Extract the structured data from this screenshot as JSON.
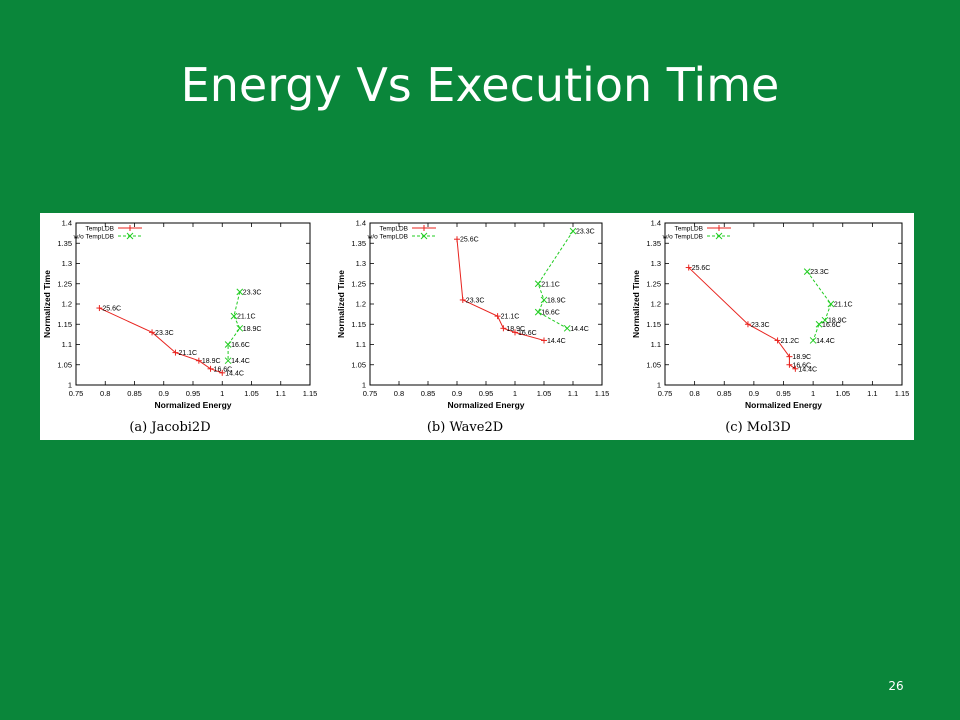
{
  "slide": {
    "title": "Energy Vs Execution Time",
    "page_number": "26"
  },
  "colors": {
    "background": "#0a863a",
    "templdb": "#e8231e",
    "wo_templdb": "#22cc22"
  },
  "chart_data": [
    {
      "type": "line",
      "caption": "(a)  Jacobi2D",
      "xlabel": "Normalized Energy",
      "ylabel": "Normalized Time",
      "xlim": [
        0.75,
        1.15
      ],
      "ylim": [
        1.0,
        1.4
      ],
      "xticks": [
        "0.75",
        "0.8",
        "0.85",
        "0.9",
        "0.95",
        "1",
        "1.05",
        "1.1",
        "1.15"
      ],
      "yticks": [
        "1",
        "1.05",
        "1.1",
        "1.15",
        "1.2",
        "1.25",
        "1.3",
        "1.35",
        "1.4"
      ],
      "legend_position": "top-left",
      "series": [
        {
          "name": "TempLDB",
          "marker": "+",
          "dash": "solid",
          "points": [
            {
              "x": 0.79,
              "y": 1.19,
              "label": "25.6C"
            },
            {
              "x": 0.88,
              "y": 1.13,
              "label": "23.3C"
            },
            {
              "x": 0.92,
              "y": 1.08,
              "label": "21.1C"
            },
            {
              "x": 0.96,
              "y": 1.06,
              "label": "18.9C"
            },
            {
              "x": 0.98,
              "y": 1.04,
              "label": "16.6C"
            },
            {
              "x": 1.0,
              "y": 1.03,
              "label": "14.4C"
            }
          ]
        },
        {
          "name": "w/o TempLDB",
          "marker": "x",
          "dash": "dashed",
          "points": [
            {
              "x": 1.03,
              "y": 1.23,
              "label": "23.3C"
            },
            {
              "x": 1.02,
              "y": 1.17,
              "label": "21.1C"
            },
            {
              "x": 1.03,
              "y": 1.14,
              "label": "18.9C"
            },
            {
              "x": 1.01,
              "y": 1.1,
              "label": "16.6C"
            },
            {
              "x": 1.01,
              "y": 1.06,
              "label": "14.4C"
            }
          ]
        }
      ]
    },
    {
      "type": "line",
      "caption": "(b)  Wave2D",
      "xlabel": "Normalized Energy",
      "ylabel": "Normalized Time",
      "xlim": [
        0.75,
        1.15
      ],
      "ylim": [
        1.0,
        1.4
      ],
      "xticks": [
        "0.75",
        "0.8",
        "0.85",
        "0.9",
        "0.95",
        "1",
        "1.05",
        "1.1",
        "1.15"
      ],
      "yticks": [
        "1",
        "1.05",
        "1.1",
        "1.15",
        "1.2",
        "1.25",
        "1.3",
        "1.35",
        "1.4"
      ],
      "legend_position": "top-left",
      "series": [
        {
          "name": "TempLDB",
          "marker": "+",
          "dash": "solid",
          "points": [
            {
              "x": 0.9,
              "y": 1.36,
              "label": "25.6C"
            },
            {
              "x": 0.91,
              "y": 1.21,
              "label": "23.3C"
            },
            {
              "x": 0.97,
              "y": 1.17,
              "label": "21.1C"
            },
            {
              "x": 0.98,
              "y": 1.14,
              "label": "18.9C"
            },
            {
              "x": 1.0,
              "y": 1.13,
              "label": "16.6C"
            },
            {
              "x": 1.05,
              "y": 1.11,
              "label": "14.4C"
            }
          ]
        },
        {
          "name": "w/o TempLDB",
          "marker": "x",
          "dash": "dashed",
          "points": [
            {
              "x": 1.1,
              "y": 1.38,
              "label": "23.3C"
            },
            {
              "x": 1.04,
              "y": 1.25,
              "label": "21.1C"
            },
            {
              "x": 1.05,
              "y": 1.21,
              "label": "18.9C"
            },
            {
              "x": 1.04,
              "y": 1.18,
              "label": "16.6C"
            },
            {
              "x": 1.09,
              "y": 1.14,
              "label": "14.4C"
            }
          ]
        }
      ]
    },
    {
      "type": "line",
      "caption": "(c)  Mol3D",
      "xlabel": "Normalized Energy",
      "ylabel": "Normalized Time",
      "xlim": [
        0.75,
        1.15
      ],
      "ylim": [
        1.0,
        1.4
      ],
      "xticks": [
        "0.75",
        "0.8",
        "0.85",
        "0.9",
        "0.95",
        "1",
        "1.05",
        "1.1",
        "1.15"
      ],
      "yticks": [
        "1",
        "1.05",
        "1.1",
        "1.15",
        "1.2",
        "1.25",
        "1.3",
        "1.35",
        "1.4"
      ],
      "legend_position": "top-left",
      "series": [
        {
          "name": "TempLDB",
          "marker": "+",
          "dash": "solid",
          "points": [
            {
              "x": 0.79,
              "y": 1.29,
              "label": "25.6C"
            },
            {
              "x": 0.89,
              "y": 1.15,
              "label": "23.3C"
            },
            {
              "x": 0.94,
              "y": 1.11,
              "label": "21.2C"
            },
            {
              "x": 0.96,
              "y": 1.07,
              "label": "18.9C"
            },
            {
              "x": 0.96,
              "y": 1.05,
              "label": "16.6C"
            },
            {
              "x": 0.97,
              "y": 1.04,
              "label": "14.4C"
            }
          ]
        },
        {
          "name": "w/o TempLDB",
          "marker": "x",
          "dash": "dashed",
          "points": [
            {
              "x": 0.99,
              "y": 1.28,
              "label": "23.3C"
            },
            {
              "x": 1.03,
              "y": 1.2,
              "label": "21.1C"
            },
            {
              "x": 1.02,
              "y": 1.16,
              "label": "18.9C"
            },
            {
              "x": 1.01,
              "y": 1.15,
              "label": "16.6C"
            },
            {
              "x": 1.0,
              "y": 1.11,
              "label": "14.4C"
            }
          ]
        }
      ]
    }
  ]
}
